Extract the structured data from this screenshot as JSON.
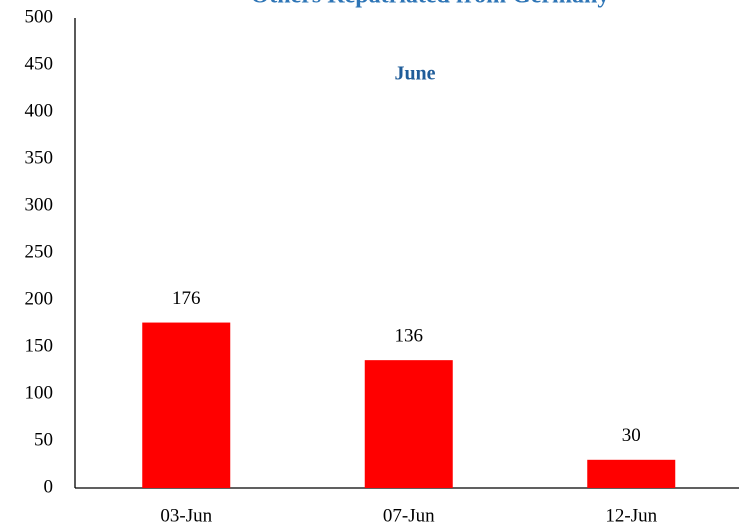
{
  "chart_data": {
    "type": "bar",
    "title": "Others Repatriated from Germany",
    "subtitle": "June",
    "categories": [
      "03-Jun",
      "07-Jun",
      "12-Jun"
    ],
    "values": [
      176,
      136,
      30
    ],
    "color": "#ff0000",
    "ylim": [
      0,
      500
    ],
    "yticks": [
      0,
      50,
      100,
      150,
      200,
      250,
      300,
      350,
      400,
      450,
      500
    ],
    "grid": false
  }
}
